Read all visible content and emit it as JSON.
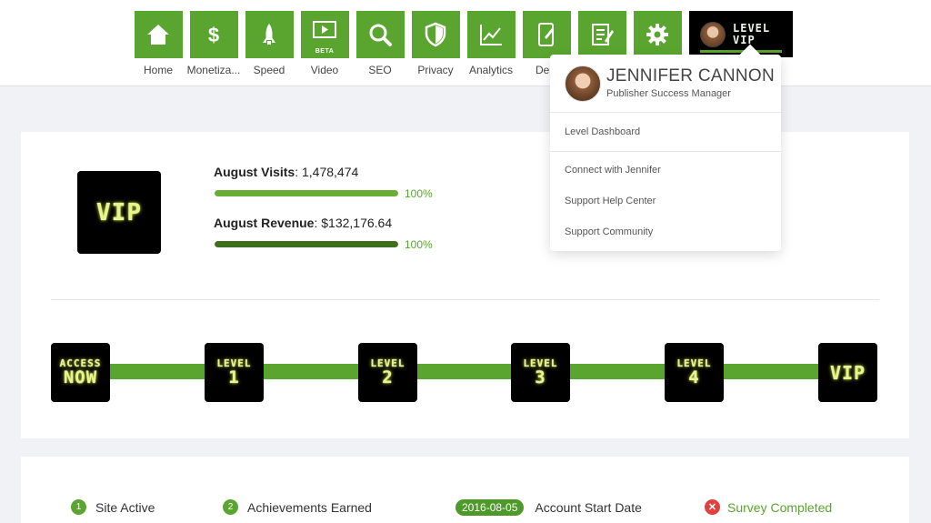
{
  "nav": {
    "items": [
      {
        "label": "Home",
        "icon": "home-icon"
      },
      {
        "label": "Monetiza...",
        "icon": "dollar-icon"
      },
      {
        "label": "Speed",
        "icon": "rocket-icon"
      },
      {
        "label": "Video",
        "icon": "video-icon",
        "badge": "BETA"
      },
      {
        "label": "SEO",
        "icon": "magnifier-icon"
      },
      {
        "label": "Privacy",
        "icon": "shield-icon"
      },
      {
        "label": "Analytics",
        "icon": "line-chart-icon"
      },
      {
        "label": "Desi",
        "icon": "mobile-edit-icon"
      },
      {
        "label": "",
        "icon": "document-edit-icon"
      },
      {
        "label": "",
        "icon": "gear-icon"
      }
    ],
    "level_badge": {
      "line1": "LEVEL",
      "line2": "VIP"
    },
    "accent_color": "#5aa52f"
  },
  "dropdown": {
    "name": "JENNIFER CANNON",
    "role": "Publisher Success Manager",
    "links": [
      "Level Dashboard",
      "Connect with Jennifer",
      "Support Help Center",
      "Support Community"
    ]
  },
  "stats": {
    "vip_label": "VIP",
    "visits": {
      "label": "August Visits",
      "value": "1,478,474",
      "percent": "100%",
      "fill": 1.0
    },
    "revenue": {
      "label": "August Revenue",
      "value": "$132,176.64",
      "percent": "100%",
      "fill": 1.0
    }
  },
  "levels": [
    {
      "top": "ACCESS",
      "main": "NOW"
    },
    {
      "top": "LEVEL",
      "main": "1"
    },
    {
      "top": "LEVEL",
      "main": "2"
    },
    {
      "top": "LEVEL",
      "main": "3"
    },
    {
      "top": "LEVEL",
      "main": "4"
    },
    {
      "top": "",
      "main": "VIP"
    }
  ],
  "achievements": {
    "site_active": {
      "num": "1",
      "label": "Site Active"
    },
    "earned": {
      "num": "2",
      "label": "Achievements Earned"
    },
    "start_date": {
      "date": "2016-08-05",
      "label": "Account Start Date"
    },
    "survey": {
      "icon": "✕",
      "label": "Survey Completed"
    }
  }
}
